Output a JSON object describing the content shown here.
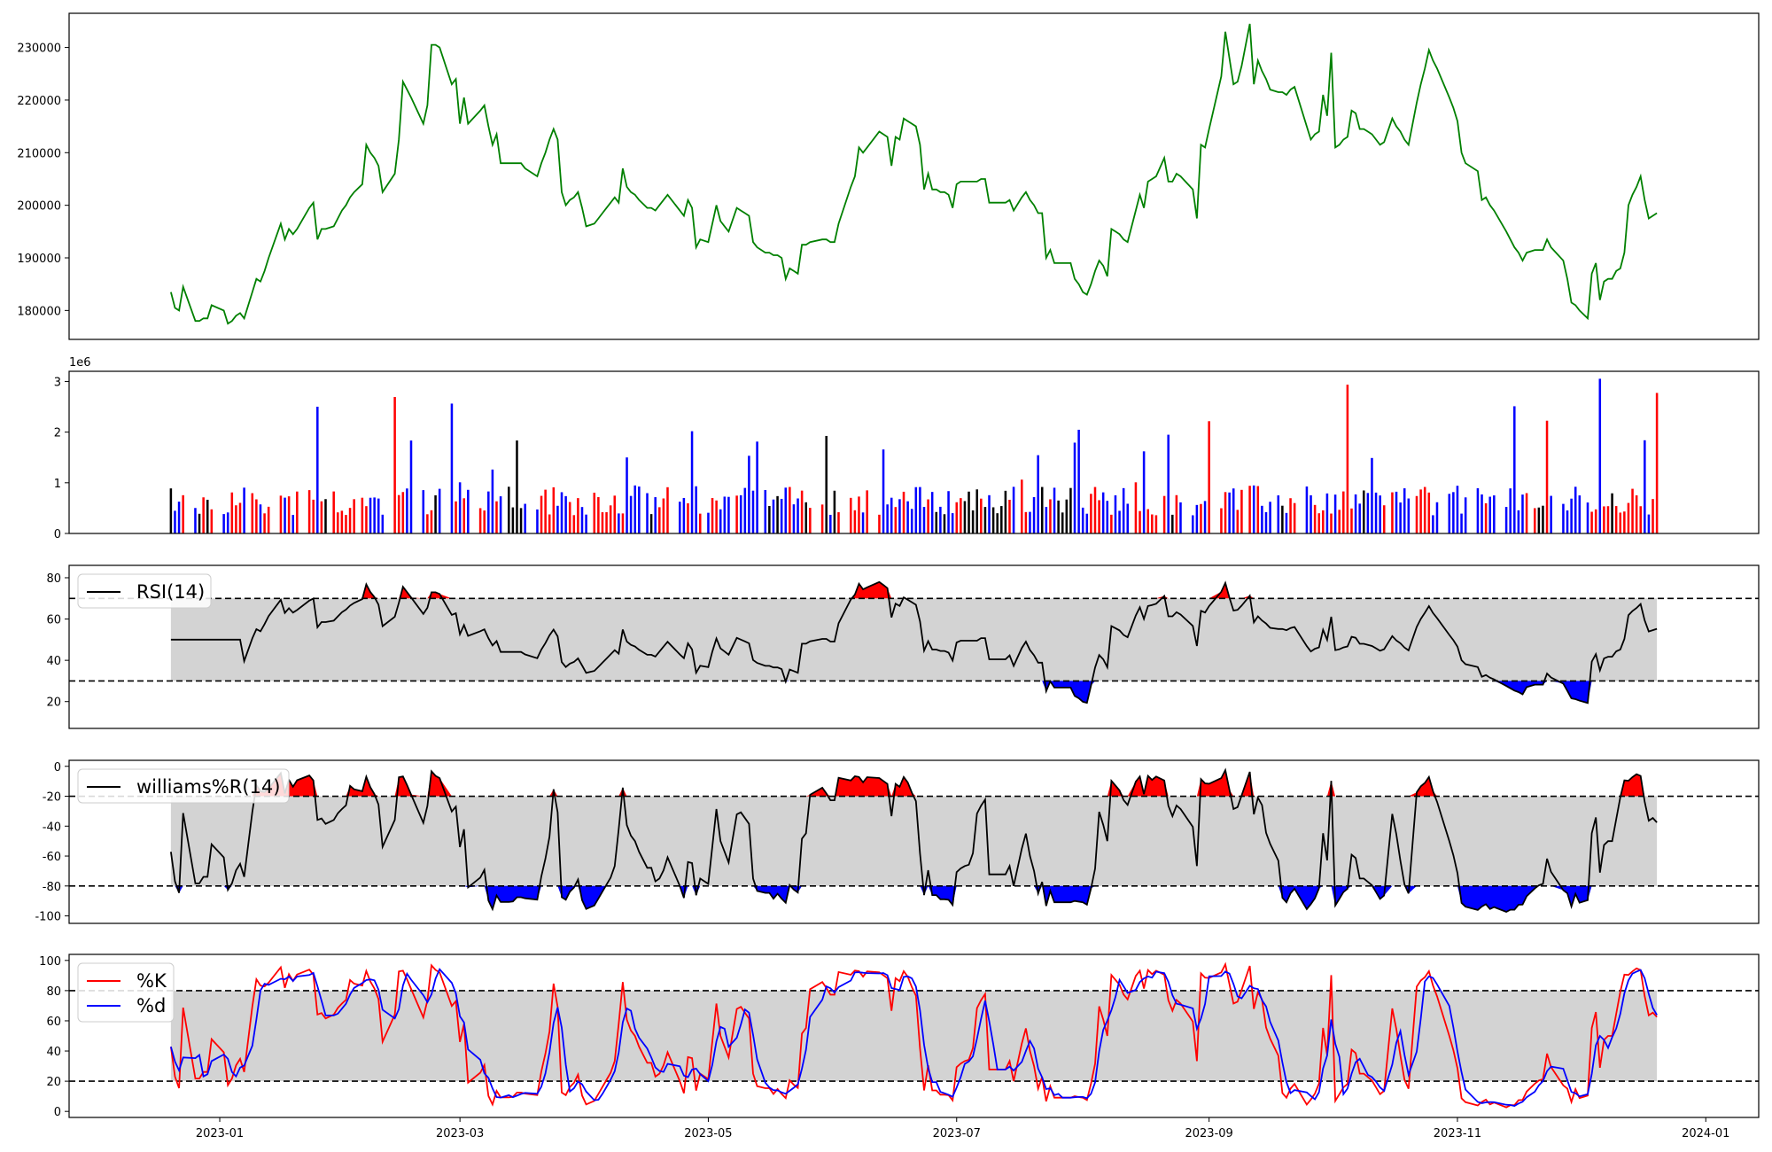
{
  "chart_data": [
    {
      "type": "line",
      "series": [
        {
          "color": "#008000",
          "x_start": "2022-12-20",
          "x_end": "2023-12-20",
          "values_keypoints": [
            [
              "2022-12-20",
              183500
            ],
            [
              "2022-12-21",
              180500
            ],
            [
              "2022-12-22",
              180000
            ],
            [
              "2022-12-23",
              184500
            ],
            [
              "2022-12-26",
              178000
            ],
            [
              "2022-12-29",
              178500
            ],
            [
              "2022-12-30",
              181000
            ],
            [
              "2023-01-02",
              180000
            ],
            [
              "2023-01-03",
              177500
            ],
            [
              "2023-01-06",
              179500
            ],
            [
              "2023-01-07",
              178500
            ],
            [
              "2023-01-10",
              186000
            ],
            [
              "2023-01-11",
              185500
            ],
            [
              "2023-01-16",
              196500
            ],
            [
              "2023-01-17",
              193500
            ],
            [
              "2023-01-18",
              195500
            ],
            [
              "2023-01-19",
              194500
            ],
            [
              "2023-01-24",
              200500
            ],
            [
              "2023-01-25",
              193500
            ],
            [
              "2023-01-26",
              195500
            ],
            [
              "2023-01-29",
              196000
            ],
            [
              "2023-02-02",
              201500
            ],
            [
              "2023-02-05",
              204000
            ],
            [
              "2023-02-06",
              211500
            ],
            [
              "2023-02-09",
              207500
            ],
            [
              "2023-02-10",
              202500
            ],
            [
              "2023-02-13",
              206000
            ],
            [
              "2023-02-14",
              212500
            ],
            [
              "2023-02-15",
              223500
            ],
            [
              "2023-02-20",
              215500
            ],
            [
              "2023-02-21",
              219000
            ],
            [
              "2023-02-22",
              230500
            ],
            [
              "2023-02-24",
              230000
            ],
            [
              "2023-02-27",
              223000
            ],
            [
              "2023-02-28",
              224000
            ],
            [
              "2023-03-01",
              215500
            ],
            [
              "2023-03-02",
              220500
            ],
            [
              "2023-03-03",
              215500
            ],
            [
              "2023-03-07",
              219000
            ],
            [
              "2023-03-08",
              215000
            ],
            [
              "2023-03-09",
              211500
            ],
            [
              "2023-03-10",
              213500
            ],
            [
              "2023-03-11",
              208000
            ],
            [
              "2023-03-16",
              208000
            ],
            [
              "2023-03-17",
              207000
            ],
            [
              "2023-03-20",
              205500
            ],
            [
              "2023-03-24",
              214500
            ],
            [
              "2023-03-25",
              212500
            ],
            [
              "2023-03-26",
              202500
            ],
            [
              "2023-03-27",
              200000
            ],
            [
              "2023-03-30",
              202500
            ],
            [
              "2023-04-01",
              196000
            ],
            [
              "2023-04-03",
              196500
            ],
            [
              "2023-04-04",
              197500
            ],
            [
              "2023-04-08",
              201500
            ],
            [
              "2023-04-09",
              200500
            ],
            [
              "2023-04-10",
              207000
            ],
            [
              "2023-04-11",
              203500
            ],
            [
              "2023-04-16",
              199500
            ],
            [
              "2023-04-17",
              199500
            ],
            [
              "2023-04-18",
              199000
            ],
            [
              "2023-04-21",
              202000
            ],
            [
              "2023-04-25",
              198000
            ],
            [
              "2023-04-26",
              201000
            ],
            [
              "2023-04-27",
              199500
            ],
            [
              "2023-04-28",
              192000
            ],
            [
              "2023-04-29",
              193500
            ],
            [
              "2023-05-01",
              193000
            ],
            [
              "2023-05-03",
              200000
            ],
            [
              "2023-05-04",
              197000
            ],
            [
              "2023-05-06",
              195000
            ],
            [
              "2023-05-08",
              199500
            ],
            [
              "2023-05-11",
              198000
            ],
            [
              "2023-05-12",
              193000
            ],
            [
              "2023-05-13",
              192000
            ],
            [
              "2023-05-15",
              191000
            ],
            [
              "2023-05-17",
              190500
            ],
            [
              "2023-05-19",
              190000
            ],
            [
              "2023-05-20",
              186000
            ],
            [
              "2023-05-21",
              188000
            ],
            [
              "2023-05-23",
              187000
            ],
            [
              "2023-05-24",
              192500
            ],
            [
              "2023-05-29",
              193500
            ],
            [
              "2023-06-01",
              193000
            ],
            [
              "2023-06-02",
              196500
            ],
            [
              "2023-06-06",
              205500
            ],
            [
              "2023-06-07",
              211000
            ],
            [
              "2023-06-08",
              210000
            ],
            [
              "2023-06-09",
              211000
            ],
            [
              "2023-06-12",
              214000
            ],
            [
              "2023-06-14",
              213000
            ],
            [
              "2023-06-15",
              207500
            ],
            [
              "2023-06-16",
              213000
            ],
            [
              "2023-06-17",
              212500
            ],
            [
              "2023-06-18",
              216500
            ],
            [
              "2023-06-21",
              215000
            ],
            [
              "2023-06-22",
              211500
            ],
            [
              "2023-06-23",
              203000
            ],
            [
              "2023-06-24",
              206000
            ],
            [
              "2023-06-25",
              203000
            ],
            [
              "2023-06-29",
              202000
            ],
            [
              "2023-06-30",
              199500
            ],
            [
              "2023-07-01",
              204000
            ],
            [
              "2023-07-02",
              204500
            ],
            [
              "2023-07-06",
              204500
            ],
            [
              "2023-07-08",
              205000
            ],
            [
              "2023-07-09",
              200500
            ],
            [
              "2023-07-13",
              200500
            ],
            [
              "2023-07-14",
              201000
            ],
            [
              "2023-07-15",
              199000
            ],
            [
              "2023-07-18",
              202500
            ],
            [
              "2023-07-21",
              198500
            ],
            [
              "2023-07-22",
              198500
            ],
            [
              "2023-07-23",
              190000
            ],
            [
              "2023-07-24",
              191500
            ],
            [
              "2023-07-25",
              189000
            ],
            [
              "2023-07-29",
              189000
            ],
            [
              "2023-07-30",
              186000
            ],
            [
              "2023-08-01",
              183500
            ],
            [
              "2023-08-02",
              183000
            ],
            [
              "2023-08-05",
              189500
            ],
            [
              "2023-08-06",
              188500
            ],
            [
              "2023-08-07",
              186500
            ],
            [
              "2023-08-08",
              195500
            ],
            [
              "2023-08-09",
              195000
            ],
            [
              "2023-08-12",
              193000
            ],
            [
              "2023-08-15",
              202000
            ],
            [
              "2023-08-16",
              199500
            ],
            [
              "2023-08-17",
              204500
            ],
            [
              "2023-08-19",
              205500
            ],
            [
              "2023-08-21",
              209000
            ],
            [
              "2023-08-22",
              204500
            ],
            [
              "2023-08-23",
              204500
            ],
            [
              "2023-08-24",
              206000
            ],
            [
              "2023-08-28",
              203000
            ],
            [
              "2023-08-29",
              197500
            ],
            [
              "2023-08-30",
              211500
            ],
            [
              "2023-08-31",
              211000
            ],
            [
              "2023-09-04",
              224500
            ],
            [
              "2023-09-05",
              233000
            ],
            [
              "2023-09-06",
              228000
            ],
            [
              "2023-09-07",
              223000
            ],
            [
              "2023-09-08",
              223500
            ],
            [
              "2023-09-09",
              226500
            ],
            [
              "2023-09-11",
              234500
            ],
            [
              "2023-09-12",
              223000
            ],
            [
              "2023-09-13",
              227500
            ],
            [
              "2023-09-16",
              222000
            ],
            [
              "2023-09-20",
              221000
            ],
            [
              "2023-09-22",
              222500
            ],
            [
              "2023-09-26",
              212500
            ],
            [
              "2023-09-28",
              214000
            ],
            [
              "2023-09-29",
              221000
            ],
            [
              "2023-09-30",
              217000
            ],
            [
              "2023-10-01",
              229000
            ],
            [
              "2023-10-02",
              211000
            ],
            [
              "2023-10-05",
              213000
            ],
            [
              "2023-10-06",
              218000
            ],
            [
              "2023-10-07",
              217500
            ],
            [
              "2023-10-08",
              214500
            ],
            [
              "2023-10-10",
              214000
            ],
            [
              "2023-10-12",
              212500
            ],
            [
              "2023-10-13",
              211500
            ],
            [
              "2023-10-14",
              212000
            ],
            [
              "2023-10-16",
              216500
            ],
            [
              "2023-10-19",
              212500
            ],
            [
              "2023-10-20",
              211500
            ],
            [
              "2023-10-22",
              219500
            ],
            [
              "2023-10-25",
              229500
            ],
            [
              "2023-10-30",
              220500
            ],
            [
              "2023-11-01",
              216000
            ],
            [
              "2023-11-02",
              210000
            ],
            [
              "2023-11-03",
              208000
            ],
            [
              "2023-11-06",
              206500
            ],
            [
              "2023-11-07",
              201000
            ],
            [
              "2023-11-08",
              201500
            ],
            [
              "2023-11-17",
              189500
            ],
            [
              "2023-11-18",
              191000
            ],
            [
              "2023-11-22",
              191500
            ],
            [
              "2023-11-23",
              193500
            ],
            [
              "2023-11-24",
              192000
            ],
            [
              "2023-11-27",
              189500
            ],
            [
              "2023-11-28",
              186000
            ],
            [
              "2023-11-29",
              181500
            ],
            [
              "2023-12-01",
              180000
            ],
            [
              "2023-12-03",
              178500
            ],
            [
              "2023-12-04",
              187000
            ],
            [
              "2023-12-05",
              189000
            ],
            [
              "2023-12-06",
              182000
            ],
            [
              "2023-12-07",
              185500
            ],
            [
              "2023-12-09",
              186000
            ],
            [
              "2023-12-10",
              187500
            ],
            [
              "2023-12-11",
              188000
            ],
            [
              "2023-12-12",
              191000
            ],
            [
              "2023-12-13",
              200000
            ],
            [
              "2023-12-16",
              205500
            ],
            [
              "2023-12-17",
              201000
            ],
            [
              "2023-12-18",
              197500
            ],
            [
              "2023-12-20",
              198500
            ]
          ]
        }
      ],
      "yticks": [
        180000,
        190000,
        200000,
        210000,
        220000,
        230000
      ],
      "ylim": [
        174500,
        236500
      ]
    },
    {
      "type": "bar",
      "exponent_label": "1e6",
      "yticks": [
        0,
        1,
        2,
        3
      ],
      "ylim": [
        0,
        3.2
      ],
      "colors": {
        "up": "#ff0000",
        "down": "#0000ff",
        "flat": "#000000"
      }
    },
    {
      "type": "line",
      "series": [
        {
          "name": "RSI(14)",
          "color": "#000000"
        }
      ],
      "yticks": [
        20,
        40,
        60,
        80
      ],
      "ylim": [
        7,
        86
      ],
      "thresholds": [
        30,
        70
      ],
      "fill_colors": {
        "over": "#ff0000",
        "under": "#0000ff",
        "band": "#d3d3d3"
      }
    },
    {
      "type": "line",
      "series": [
        {
          "name": "williams%R(14)",
          "color": "#000000"
        }
      ],
      "yticks": [
        -100,
        -80,
        -60,
        -40,
        -20,
        0
      ],
      "ylim": [
        -105,
        4
      ],
      "thresholds": [
        -80,
        -20
      ],
      "fill_colors": {
        "over": "#ff0000",
        "under": "#0000ff",
        "band": "#d3d3d3"
      }
    },
    {
      "type": "line",
      "series": [
        {
          "name": "%K",
          "color": "#ff0000"
        },
        {
          "name": "%d",
          "color": "#0000ff"
        }
      ],
      "yticks": [
        0,
        20,
        40,
        60,
        80,
        100
      ],
      "ylim": [
        -4,
        104
      ],
      "thresholds": [
        20,
        80
      ],
      "band_color": "#d3d3d3"
    }
  ],
  "x_axis": {
    "tick_labels": [
      "2023-01",
      "2023-03",
      "2023-05",
      "2023-07",
      "2023-09",
      "2023-11",
      "2024-01"
    ],
    "tick_dates": [
      "2023-01-01",
      "2023-03-01",
      "2023-05-01",
      "2023-07-01",
      "2023-09-01",
      "2023-11-01",
      "2024-01-01"
    ],
    "range": [
      "2022-11-25",
      "2024-01-14"
    ]
  }
}
